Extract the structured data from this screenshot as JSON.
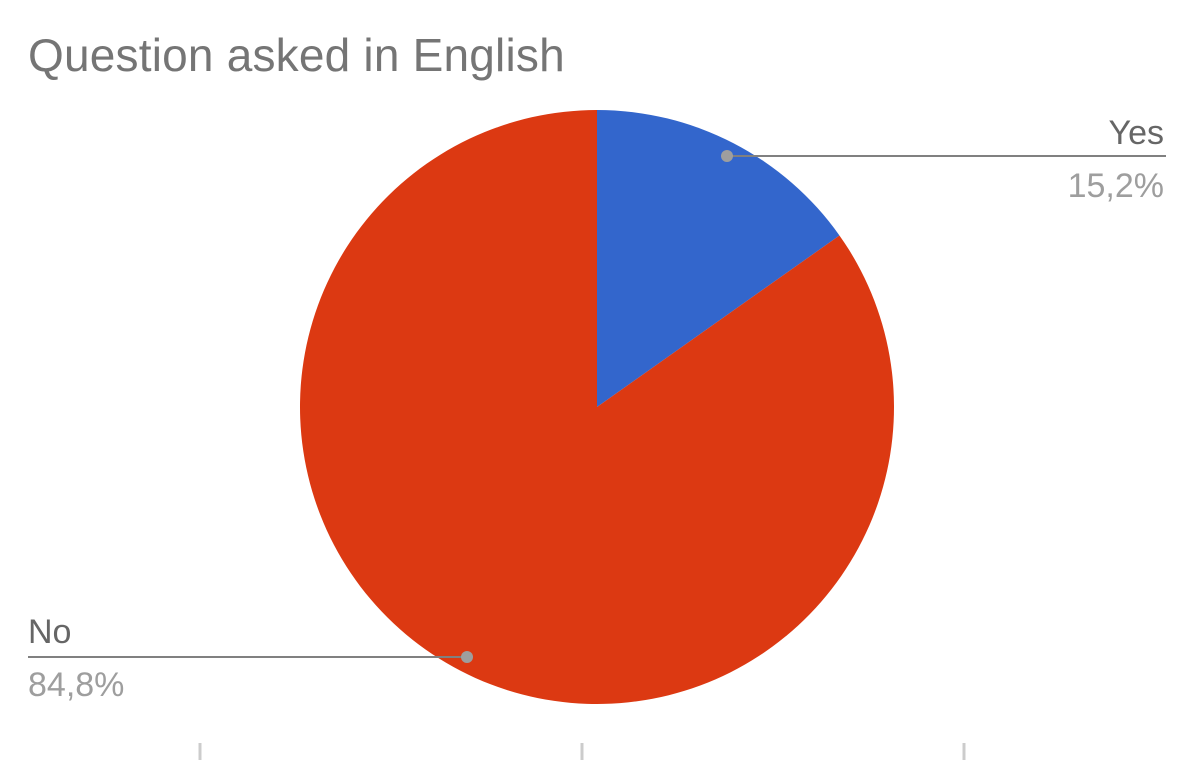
{
  "chart_data": {
    "type": "pie",
    "title": "Question asked in English",
    "slices": [
      {
        "label": "Yes",
        "value": 15.2,
        "display": "15,2%",
        "color": "#3366cc"
      },
      {
        "label": "No",
        "value": 84.8,
        "display": "84,8%",
        "color": "#dc3912"
      }
    ],
    "start_angle_deg": 0,
    "direction": "clockwise"
  }
}
